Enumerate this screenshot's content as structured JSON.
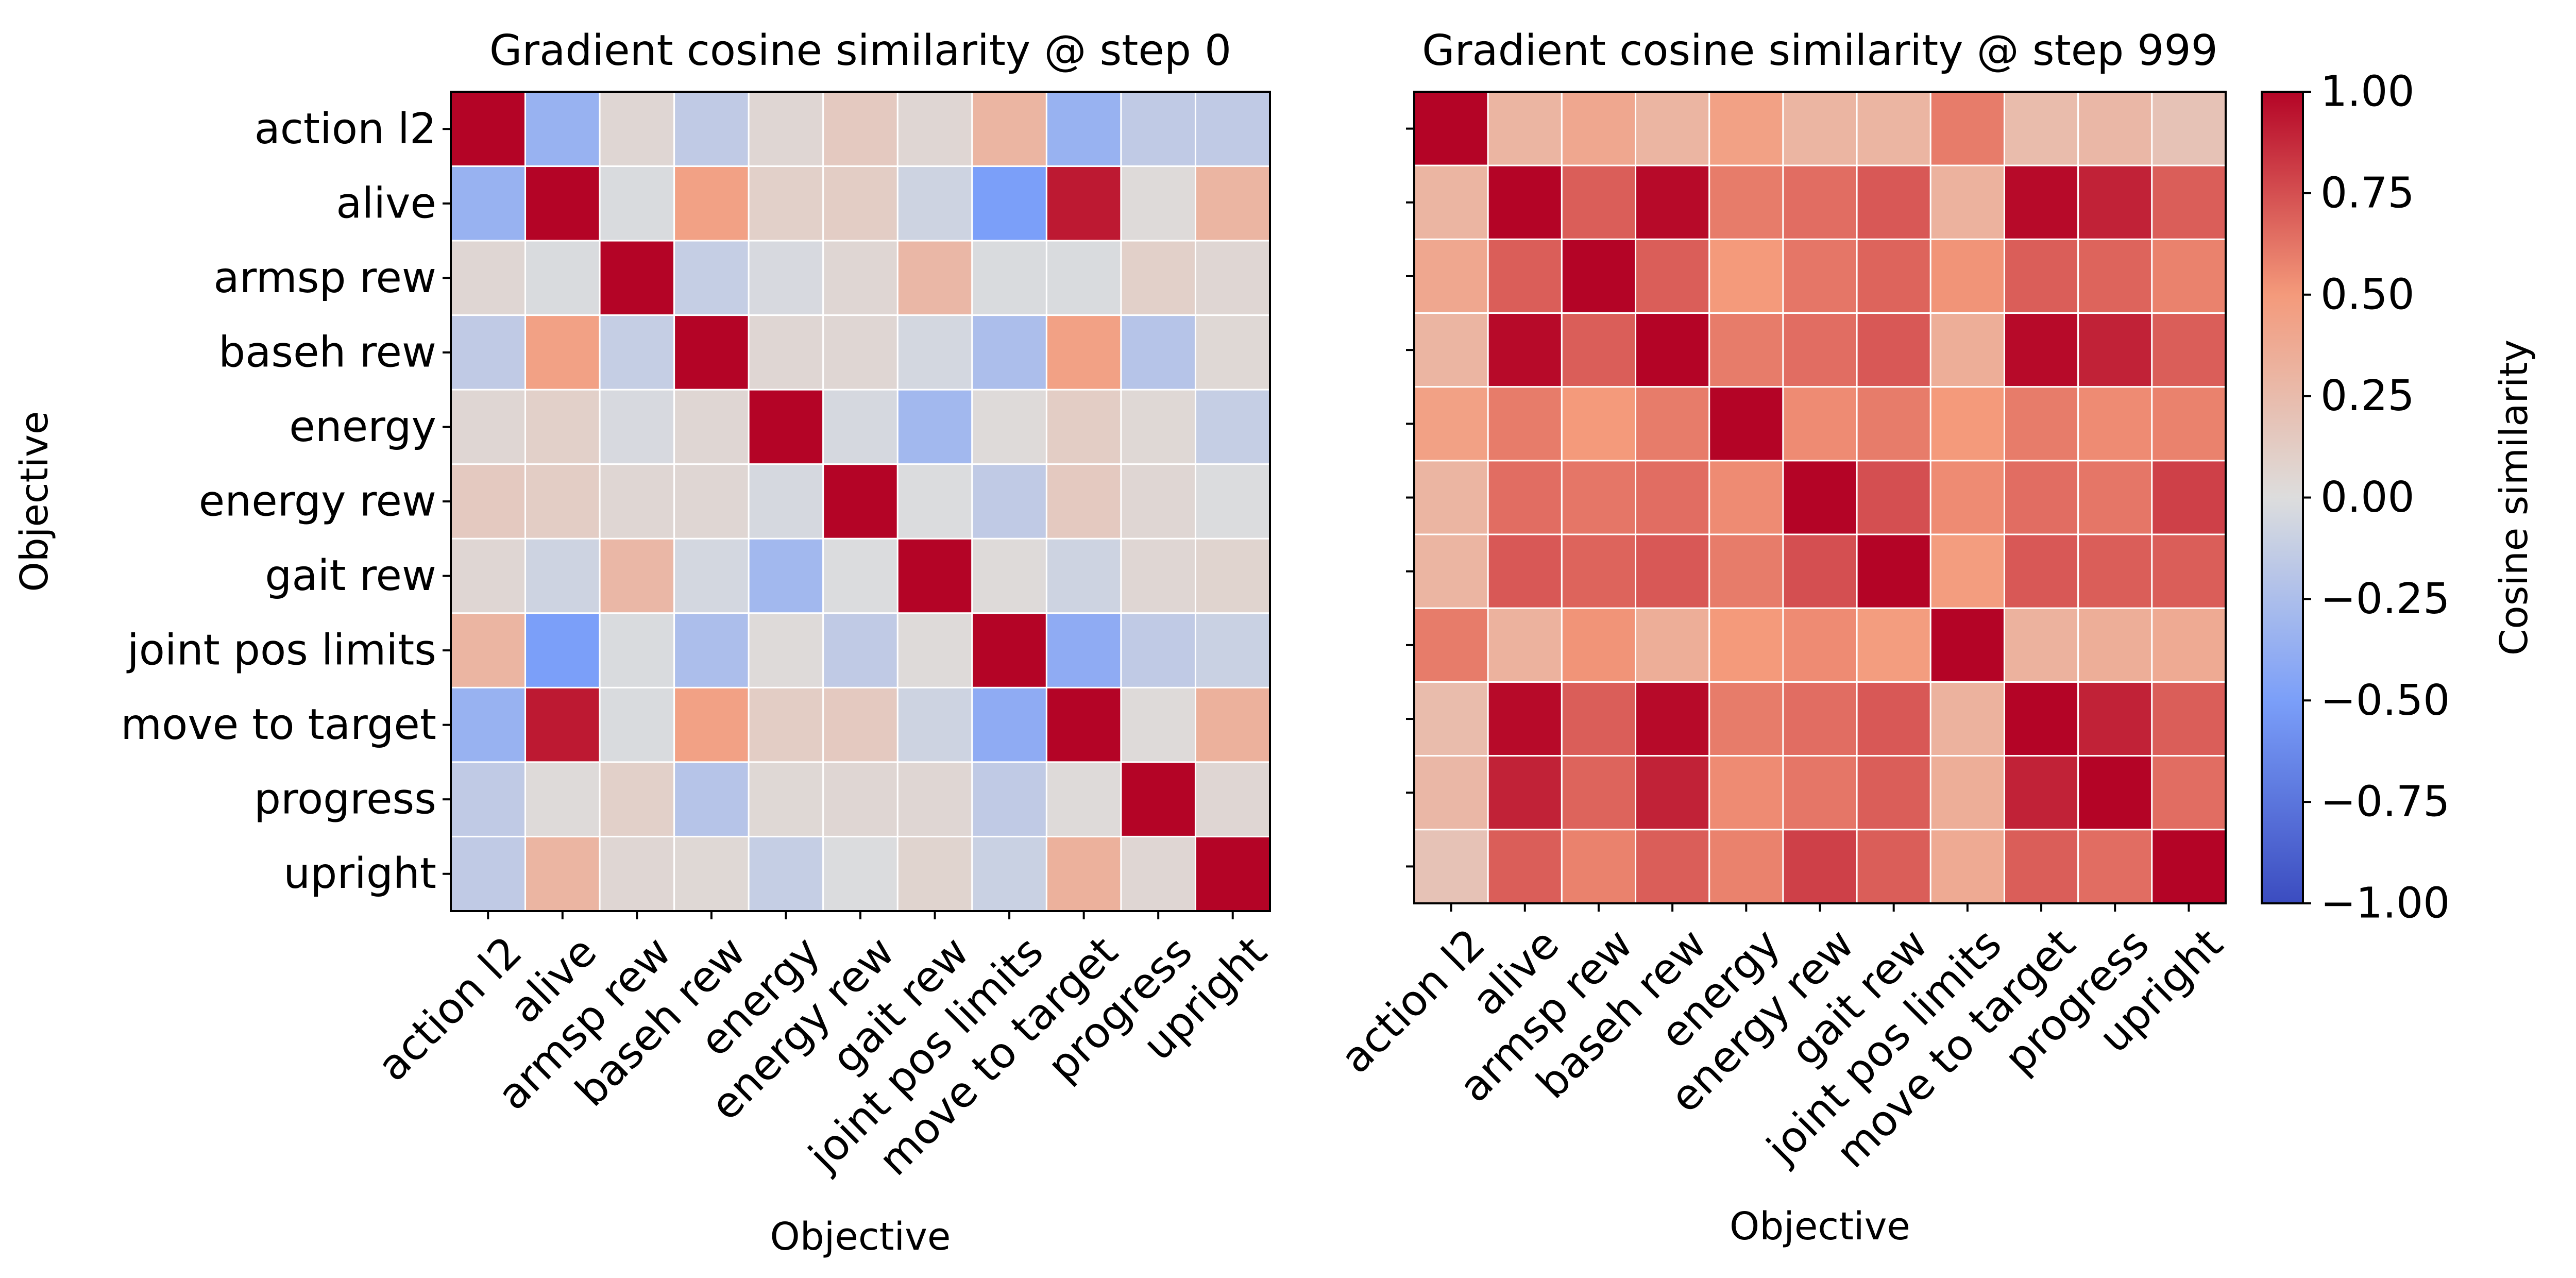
{
  "chart_data": [
    {
      "type": "heatmap",
      "title": "Gradient cosine similarity @ step 0",
      "xlabel": "Objective",
      "ylabel": "Objective",
      "categories": [
        "action l2",
        "alive",
        "armsp rew",
        "baseh rew",
        "energy",
        "energy rew",
        "gait rew",
        "joint pos limits",
        "move to target",
        "progress",
        "upright"
      ],
      "vmin": -1,
      "vmax": 1,
      "values": [
        [
          1.0,
          -0.35,
          0.05,
          -0.15,
          0.05,
          0.15,
          0.05,
          0.3,
          -0.35,
          -0.15,
          -0.15
        ],
        [
          -0.35,
          1.0,
          -0.02,
          0.45,
          0.1,
          0.12,
          -0.08,
          -0.5,
          0.93,
          0.02,
          0.3
        ],
        [
          0.05,
          -0.02,
          1.0,
          -0.12,
          -0.03,
          0.05,
          0.28,
          -0.02,
          -0.02,
          0.1,
          0.05
        ],
        [
          -0.15,
          0.45,
          -0.12,
          1.0,
          0.05,
          0.05,
          -0.05,
          -0.25,
          0.45,
          -0.2,
          0.04
        ],
        [
          0.05,
          0.1,
          -0.03,
          0.05,
          1.0,
          -0.04,
          -0.3,
          0.02,
          0.12,
          0.04,
          -0.12
        ],
        [
          0.15,
          0.12,
          0.05,
          0.05,
          -0.04,
          1.0,
          -0.01,
          -0.15,
          0.15,
          0.05,
          -0.01
        ],
        [
          0.05,
          -0.08,
          0.28,
          -0.05,
          -0.3,
          -0.01,
          1.0,
          0.02,
          -0.08,
          0.05,
          0.07
        ],
        [
          0.3,
          -0.5,
          -0.02,
          -0.25,
          0.02,
          -0.15,
          0.02,
          1.0,
          -0.4,
          -0.15,
          -0.1
        ],
        [
          -0.35,
          0.93,
          -0.02,
          0.45,
          0.12,
          0.15,
          -0.08,
          -0.4,
          1.0,
          0.02,
          0.33
        ],
        [
          -0.15,
          0.02,
          0.1,
          -0.2,
          0.04,
          0.05,
          0.05,
          -0.15,
          0.02,
          1.0,
          0.05
        ],
        [
          -0.15,
          0.3,
          0.05,
          0.04,
          -0.12,
          -0.01,
          0.07,
          -0.1,
          0.33,
          0.05,
          1.0
        ]
      ]
    },
    {
      "type": "heatmap",
      "title": "Gradient cosine similarity @ step 999",
      "xlabel": "Objective",
      "ylabel": "",
      "categories": [
        "action l2",
        "alive",
        "armsp rew",
        "baseh rew",
        "energy",
        "energy rew",
        "gait rew",
        "joint pos limits",
        "move to target",
        "progress",
        "upright"
      ],
      "vmin": -1,
      "vmax": 1,
      "values": [
        [
          1.0,
          0.3,
          0.4,
          0.3,
          0.45,
          0.3,
          0.3,
          0.6,
          0.25,
          0.28,
          0.2
        ],
        [
          0.3,
          1.0,
          0.7,
          0.98,
          0.6,
          0.65,
          0.72,
          0.32,
          0.98,
          0.9,
          0.7
        ],
        [
          0.4,
          0.7,
          1.0,
          0.7,
          0.5,
          0.62,
          0.68,
          0.52,
          0.7,
          0.68,
          0.58
        ],
        [
          0.3,
          0.98,
          0.7,
          1.0,
          0.6,
          0.65,
          0.72,
          0.35,
          0.98,
          0.9,
          0.7
        ],
        [
          0.45,
          0.6,
          0.5,
          0.6,
          1.0,
          0.55,
          0.6,
          0.5,
          0.6,
          0.55,
          0.58
        ],
        [
          0.3,
          0.65,
          0.62,
          0.65,
          0.55,
          1.0,
          0.75,
          0.55,
          0.65,
          0.62,
          0.8
        ],
        [
          0.3,
          0.72,
          0.68,
          0.72,
          0.6,
          0.75,
          1.0,
          0.48,
          0.72,
          0.7,
          0.7
        ],
        [
          0.6,
          0.32,
          0.52,
          0.35,
          0.5,
          0.55,
          0.48,
          1.0,
          0.32,
          0.35,
          0.38
        ],
        [
          0.25,
          0.98,
          0.7,
          0.98,
          0.6,
          0.65,
          0.72,
          0.32,
          1.0,
          0.9,
          0.7
        ],
        [
          0.28,
          0.9,
          0.68,
          0.9,
          0.55,
          0.62,
          0.7,
          0.35,
          0.9,
          1.0,
          0.65
        ],
        [
          0.2,
          0.7,
          0.58,
          0.7,
          0.58,
          0.8,
          0.7,
          0.38,
          0.7,
          0.65,
          1.0
        ]
      ]
    }
  ],
  "colorbar": {
    "label": "Cosine similarity",
    "ticks": [
      "1.00",
      "0.75",
      "0.50",
      "0.25",
      "0.00",
      "−0.25",
      "−0.50",
      "−0.75",
      "−1.00"
    ],
    "tick_values": [
      1.0,
      0.75,
      0.5,
      0.25,
      0.0,
      -0.25,
      -0.5,
      -0.75,
      -1.0
    ],
    "colormap": "coolwarm",
    "min_color": "#3b4cc0",
    "mid_color": "#dddddd",
    "max_color": "#b40426"
  }
}
